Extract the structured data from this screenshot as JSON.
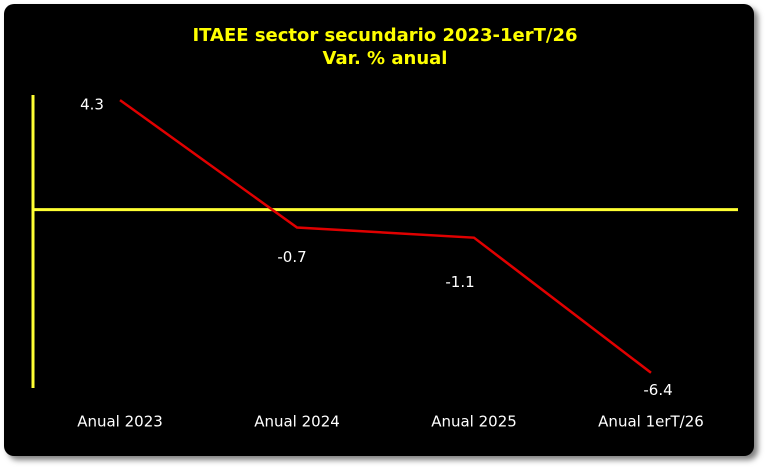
{
  "chart_data": {
    "type": "line",
    "title": "ITAEE sector secundario 2023-1erT/26",
    "subtitle": "Var. % anual",
    "categories": [
      "Anual 2023",
      "Anual 2024",
      "Anual 2025",
      "Anual 1erT/26"
    ],
    "values": [
      4.3,
      -0.7,
      -1.1,
      -6.4
    ],
    "color": "#e00000",
    "axis_color": "#ffff33",
    "ylim": [
      -7,
      4.5
    ]
  }
}
